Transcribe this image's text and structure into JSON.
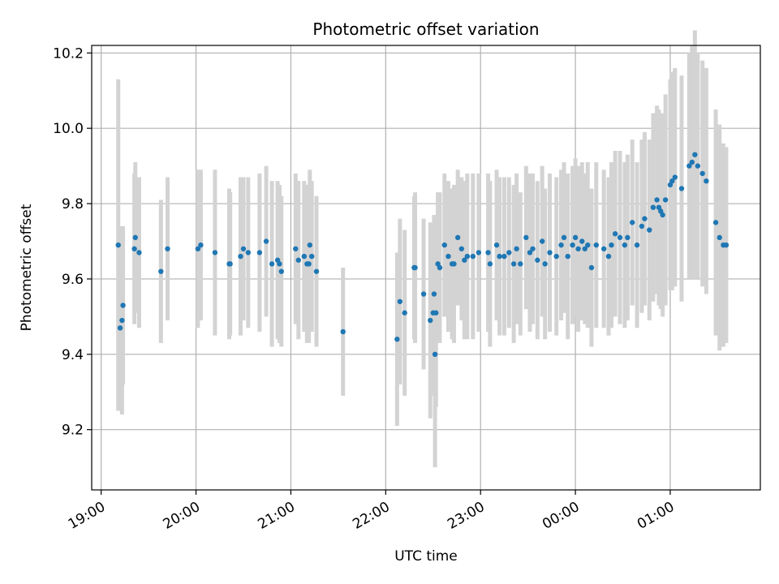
{
  "chart_data": {
    "type": "scatter",
    "title": "Photometric offset variation",
    "xlabel": "UTC time",
    "ylabel": "Photometric offset",
    "x_unit": "hours of day, UTC; values of 24 and above fall after midnight",
    "xlim": [
      18.9,
      25.95
    ],
    "ylim": [
      9.04,
      10.22
    ],
    "xticks": [
      19,
      20,
      21,
      22,
      23,
      24,
      25
    ],
    "xtick_labels": [
      "19:00",
      "20:00",
      "21:00",
      "22:00",
      "23:00",
      "00:00",
      "01:00"
    ],
    "yticks": [
      9.2,
      9.4,
      9.6,
      9.8,
      10.0,
      10.2
    ],
    "ytick_labels": [
      "9.2",
      "9.4",
      "9.6",
      "9.8",
      "10.0",
      "10.2"
    ],
    "grid": true,
    "colors": {
      "points": "#1f77b4",
      "errorbars": "#d3d3d3"
    },
    "series": [
      {
        "points": [
          [
            19.18,
            9.69,
            0.44
          ],
          [
            19.2,
            9.47,
            0.22
          ],
          [
            19.22,
            9.49,
            0.25
          ],
          [
            19.23,
            9.53,
            0.21
          ],
          [
            19.35,
            9.68,
            0.2
          ],
          [
            19.36,
            9.71,
            0.2
          ],
          [
            19.4,
            9.67,
            0.2
          ],
          [
            19.63,
            9.62,
            0.19
          ],
          [
            19.7,
            9.68,
            0.19
          ],
          [
            20.02,
            9.68,
            0.21
          ],
          [
            20.05,
            9.69,
            0.2
          ],
          [
            20.2,
            9.67,
            0.22
          ],
          [
            20.35,
            9.64,
            0.2
          ],
          [
            20.36,
            9.64,
            0.19
          ],
          [
            20.47,
            9.66,
            0.21
          ],
          [
            20.5,
            9.68,
            0.19
          ],
          [
            20.55,
            9.67,
            0.2
          ],
          [
            20.67,
            9.67,
            0.21
          ],
          [
            20.74,
            9.7,
            0.2
          ],
          [
            20.8,
            9.64,
            0.22
          ],
          [
            20.86,
            9.65,
            0.21
          ],
          [
            20.88,
            9.64,
            0.21
          ],
          [
            20.9,
            9.62,
            0.2
          ],
          [
            21.05,
            9.68,
            0.2
          ],
          [
            21.08,
            9.65,
            0.21
          ],
          [
            21.14,
            9.66,
            0.2
          ],
          [
            21.17,
            9.64,
            0.21
          ],
          [
            21.19,
            9.64,
            0.21
          ],
          [
            21.2,
            9.69,
            0.2
          ],
          [
            21.22,
            9.66,
            0.2
          ],
          [
            21.27,
            9.62,
            0.2
          ],
          [
            21.55,
            9.46,
            0.17
          ],
          [
            22.12,
            9.44,
            0.23
          ],
          [
            22.15,
            9.54,
            0.22
          ],
          [
            22.2,
            9.51,
            0.22
          ],
          [
            22.3,
            9.63,
            0.19
          ],
          [
            22.31,
            9.63,
            0.2
          ],
          [
            22.4,
            9.56,
            0.2
          ],
          [
            22.47,
            9.49,
            0.26
          ],
          [
            22.5,
            9.51,
            0.22
          ],
          [
            22.51,
            9.56,
            0.21
          ],
          [
            22.52,
            9.4,
            0.3
          ],
          [
            22.53,
            9.51,
            0.25
          ],
          [
            22.55,
            9.64,
            0.19
          ],
          [
            22.57,
            9.63,
            0.2
          ],
          [
            22.62,
            9.69,
            0.19
          ],
          [
            22.66,
            9.66,
            0.2
          ],
          [
            22.7,
            9.64,
            0.2
          ],
          [
            22.72,
            9.64,
            0.21
          ],
          [
            22.76,
            9.71,
            0.18
          ],
          [
            22.8,
            9.68,
            0.19
          ],
          [
            22.83,
            9.65,
            0.21
          ],
          [
            22.86,
            9.66,
            0.22
          ],
          [
            22.92,
            9.66,
            0.22
          ],
          [
            22.98,
            9.67,
            0.21
          ],
          [
            23.08,
            9.67,
            0.21
          ],
          [
            23.1,
            9.64,
            0.22
          ],
          [
            23.17,
            9.69,
            0.2
          ],
          [
            23.2,
            9.66,
            0.21
          ],
          [
            23.25,
            9.66,
            0.21
          ],
          [
            23.3,
            9.67,
            0.2
          ],
          [
            23.35,
            9.64,
            0.21
          ],
          [
            23.38,
            9.68,
            0.2
          ],
          [
            23.42,
            9.64,
            0.19
          ],
          [
            23.48,
            9.71,
            0.19
          ],
          [
            23.52,
            9.67,
            0.21
          ],
          [
            23.55,
            9.68,
            0.2
          ],
          [
            23.6,
            9.65,
            0.21
          ],
          [
            23.65,
            9.7,
            0.2
          ],
          [
            23.68,
            9.64,
            0.2
          ],
          [
            23.73,
            9.67,
            0.21
          ],
          [
            23.8,
            9.66,
            0.21
          ],
          [
            23.85,
            9.69,
            0.2
          ],
          [
            23.88,
            9.71,
            0.2
          ],
          [
            23.92,
            9.66,
            0.22
          ],
          [
            23.97,
            9.69,
            0.21
          ],
          [
            24.0,
            9.71,
            0.21
          ],
          [
            24.03,
            9.68,
            0.22
          ],
          [
            24.07,
            9.7,
            0.21
          ],
          [
            24.1,
            9.68,
            0.2
          ],
          [
            24.13,
            9.69,
            0.22
          ],
          [
            24.17,
            9.63,
            0.21
          ],
          [
            24.22,
            9.69,
            0.22
          ],
          [
            24.3,
            9.68,
            0.21
          ],
          [
            24.35,
            9.66,
            0.21
          ],
          [
            24.38,
            9.69,
            0.22
          ],
          [
            24.42,
            9.72,
            0.22
          ],
          [
            24.47,
            9.71,
            0.23
          ],
          [
            24.52,
            9.69,
            0.22
          ],
          [
            24.55,
            9.71,
            0.22
          ],
          [
            24.6,
            9.75,
            0.22
          ],
          [
            24.65,
            9.69,
            0.22
          ],
          [
            24.7,
            9.74,
            0.23
          ],
          [
            24.73,
            9.76,
            0.23
          ],
          [
            24.78,
            9.73,
            0.24
          ],
          [
            24.82,
            9.79,
            0.25
          ],
          [
            24.86,
            9.81,
            0.25
          ],
          [
            24.88,
            9.79,
            0.26
          ],
          [
            24.9,
            9.78,
            0.26
          ],
          [
            24.92,
            9.77,
            0.27
          ],
          [
            24.95,
            9.81,
            0.28
          ],
          [
            25.0,
            9.85,
            0.28
          ],
          [
            25.02,
            9.86,
            0.29
          ],
          [
            25.05,
            9.87,
            0.29
          ],
          [
            25.12,
            9.84,
            0.3
          ],
          [
            25.2,
            9.9,
            0.3
          ],
          [
            25.23,
            9.91,
            0.31
          ],
          [
            25.26,
            9.93,
            0.33
          ],
          [
            25.29,
            9.9,
            0.3
          ],
          [
            25.34,
            9.88,
            0.3
          ],
          [
            25.38,
            9.86,
            0.3
          ],
          [
            25.48,
            9.75,
            0.3
          ],
          [
            25.52,
            9.71,
            0.3
          ],
          [
            25.56,
            9.69,
            0.27
          ],
          [
            25.59,
            9.69,
            0.26
          ]
        ]
      }
    ]
  }
}
